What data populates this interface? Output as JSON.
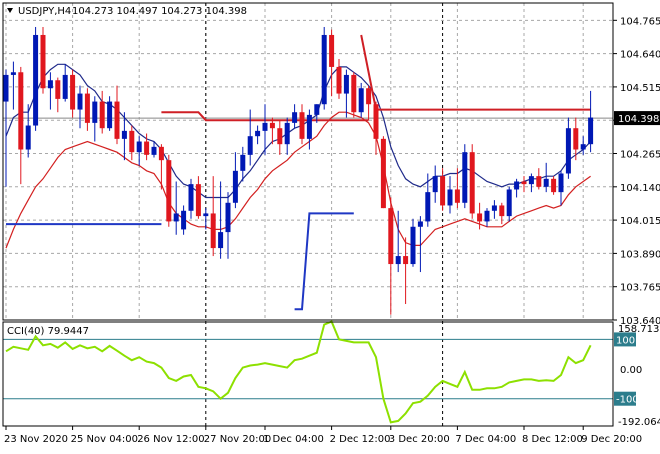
{
  "header": {
    "symbol_timeframe": "USDJPY,H4",
    "ohlc": "104.273 104.497 104.273 104.398"
  },
  "colors": {
    "bull_candle": "#0018b4",
    "bear_candle": "#e0171e",
    "upper_band": "#1f2a8a",
    "lower_band": "#d32020",
    "resistance_line": "#cf1f25",
    "support_line": "#1f37c4",
    "cci_line": "#8de000",
    "cci_level_line": "#2c7d8c",
    "price_marker_bg": "#000000",
    "price_marker_text": "#ffffff"
  },
  "chart_data": [
    {
      "type": "candlestick",
      "symbol": "USDJPY",
      "timeframe": "H4",
      "current_price": "104.398",
      "ylim": [
        103.64,
        104.83
      ],
      "y_ticks": [
        "104.765",
        "104.640",
        "104.515",
        "104.390",
        "104.265",
        "104.140",
        "104.015",
        "103.890",
        "103.765",
        "103.640"
      ],
      "x_ticks": [
        "23 Nov 2020",
        "25 Nov 04:00",
        "26 Nov 12:00",
        "27 Nov 20:00",
        "1 Dec 04:00",
        "2 Dec 12:00",
        "3 Dec 20:00",
        "7 Dec 04:00",
        "8 Dec 12:00",
        "9 Dec 20:00"
      ],
      "candles": [
        {
          "o": 104.46,
          "h": 104.58,
          "l": 104.14,
          "c": 104.56
        },
        {
          "o": 104.56,
          "h": 104.61,
          "l": 104.43,
          "c": 104.57
        },
        {
          "o": 104.57,
          "h": 104.59,
          "l": 104.15,
          "c": 104.28
        },
        {
          "o": 104.28,
          "h": 104.45,
          "l": 104.25,
          "c": 104.37
        },
        {
          "o": 104.37,
          "h": 104.74,
          "l": 104.35,
          "c": 104.71
        },
        {
          "o": 104.71,
          "h": 104.74,
          "l": 104.49,
          "c": 104.51
        },
        {
          "o": 104.51,
          "h": 104.57,
          "l": 104.43,
          "c": 104.54
        },
        {
          "o": 104.54,
          "h": 104.55,
          "l": 104.42,
          "c": 104.47
        },
        {
          "o": 104.47,
          "h": 104.6,
          "l": 104.46,
          "c": 104.56
        },
        {
          "o": 104.56,
          "h": 104.58,
          "l": 104.4,
          "c": 104.43
        },
        {
          "o": 104.43,
          "h": 104.52,
          "l": 104.36,
          "c": 104.49
        },
        {
          "o": 104.49,
          "h": 104.51,
          "l": 104.35,
          "c": 104.38
        },
        {
          "o": 104.38,
          "h": 104.48,
          "l": 104.31,
          "c": 104.46
        },
        {
          "o": 104.46,
          "h": 104.5,
          "l": 104.34,
          "c": 104.36
        },
        {
          "o": 104.36,
          "h": 104.48,
          "l": 104.35,
          "c": 104.46
        },
        {
          "o": 104.46,
          "h": 104.52,
          "l": 104.3,
          "c": 104.32
        },
        {
          "o": 104.32,
          "h": 104.42,
          "l": 104.24,
          "c": 104.35
        },
        {
          "o": 104.35,
          "h": 104.37,
          "l": 104.24,
          "c": 104.27
        },
        {
          "o": 104.27,
          "h": 104.33,
          "l": 104.22,
          "c": 104.31
        },
        {
          "o": 104.31,
          "h": 104.34,
          "l": 104.24,
          "c": 104.26
        },
        {
          "o": 104.26,
          "h": 104.31,
          "l": 104.25,
          "c": 104.29
        },
        {
          "o": 104.29,
          "h": 104.3,
          "l": 104.13,
          "c": 104.24
        },
        {
          "o": 104.24,
          "h": 104.26,
          "l": 103.99,
          "c": 104.01
        },
        {
          "o": 104.01,
          "h": 104.16,
          "l": 103.96,
          "c": 104.04
        },
        {
          "o": 103.98,
          "h": 104.07,
          "l": 103.96,
          "c": 104.05
        },
        {
          "o": 104.05,
          "h": 104.17,
          "l": 104.02,
          "c": 104.15
        },
        {
          "o": 104.15,
          "h": 104.18,
          "l": 104.02,
          "c": 104.03
        },
        {
          "o": 104.03,
          "h": 104.06,
          "l": 103.98,
          "c": 104.04
        },
        {
          "o": 104.04,
          "h": 104.18,
          "l": 103.88,
          "c": 103.91
        },
        {
          "o": 103.91,
          "h": 104.16,
          "l": 103.87,
          "c": 103.97
        },
        {
          "o": 103.97,
          "h": 104.12,
          "l": 103.87,
          "c": 104.08
        },
        {
          "o": 104.08,
          "h": 104.27,
          "l": 104.06,
          "c": 104.2
        },
        {
          "o": 104.2,
          "h": 104.29,
          "l": 104.16,
          "c": 104.26
        },
        {
          "o": 104.26,
          "h": 104.43,
          "l": 104.22,
          "c": 104.33
        },
        {
          "o": 104.33,
          "h": 104.37,
          "l": 104.3,
          "c": 104.35
        },
        {
          "o": 104.35,
          "h": 104.45,
          "l": 104.26,
          "c": 104.38
        },
        {
          "o": 104.38,
          "h": 104.4,
          "l": 104.3,
          "c": 104.36
        },
        {
          "o": 104.36,
          "h": 104.39,
          "l": 104.26,
          "c": 104.3
        },
        {
          "o": 104.3,
          "h": 104.4,
          "l": 104.26,
          "c": 104.38
        },
        {
          "o": 104.38,
          "h": 104.45,
          "l": 104.36,
          "c": 104.42
        },
        {
          "o": 104.42,
          "h": 104.45,
          "l": 104.3,
          "c": 104.32
        },
        {
          "o": 104.32,
          "h": 104.43,
          "l": 104.28,
          "c": 104.41
        },
        {
          "o": 104.41,
          "h": 104.45,
          "l": 104.38,
          "c": 104.45
        },
        {
          "o": 104.45,
          "h": 104.74,
          "l": 104.43,
          "c": 104.71
        },
        {
          "o": 104.71,
          "h": 104.73,
          "l": 104.48,
          "c": 104.59
        },
        {
          "o": 104.59,
          "h": 104.62,
          "l": 104.47,
          "c": 104.49
        },
        {
          "o": 104.49,
          "h": 104.58,
          "l": 104.4,
          "c": 104.56
        },
        {
          "o": 104.56,
          "h": 104.57,
          "l": 104.4,
          "c": 104.42
        },
        {
          "o": 104.42,
          "h": 104.53,
          "l": 104.4,
          "c": 104.51
        },
        {
          "o": 104.51,
          "h": 104.52,
          "l": 104.39,
          "c": 104.45
        },
        {
          "o": 104.45,
          "h": 104.46,
          "l": 104.26,
          "c": 104.32
        },
        {
          "o": 104.32,
          "h": 104.33,
          "l": 104.06,
          "c": 104.06
        },
        {
          "o": 104.06,
          "h": 104.1,
          "l": 103.66,
          "c": 103.85
        },
        {
          "o": 103.85,
          "h": 104.05,
          "l": 103.82,
          "c": 103.88
        },
        {
          "o": 103.88,
          "h": 103.95,
          "l": 103.7,
          "c": 103.85
        },
        {
          "o": 103.85,
          "h": 104.02,
          "l": 103.84,
          "c": 103.99
        },
        {
          "o": 103.99,
          "h": 104.03,
          "l": 103.82,
          "c": 104.01
        },
        {
          "o": 104.01,
          "h": 104.19,
          "l": 103.99,
          "c": 104.12
        },
        {
          "o": 104.12,
          "h": 104.22,
          "l": 104.08,
          "c": 104.18
        },
        {
          "o": 104.18,
          "h": 104.21,
          "l": 104.05,
          "c": 104.07
        },
        {
          "o": 104.07,
          "h": 104.18,
          "l": 104.04,
          "c": 104.13
        },
        {
          "o": 104.13,
          "h": 104.21,
          "l": 104.06,
          "c": 104.08
        },
        {
          "o": 104.08,
          "h": 104.3,
          "l": 104.06,
          "c": 104.27
        },
        {
          "o": 104.27,
          "h": 104.3,
          "l": 104.02,
          "c": 104.04
        },
        {
          "o": 104.04,
          "h": 104.08,
          "l": 103.98,
          "c": 104.01
        },
        {
          "o": 104.01,
          "h": 104.06,
          "l": 103.99,
          "c": 104.05
        },
        {
          "o": 104.05,
          "h": 104.09,
          "l": 104.02,
          "c": 104.07
        },
        {
          "o": 104.07,
          "h": 104.08,
          "l": 104.0,
          "c": 104.03
        },
        {
          "o": 104.03,
          "h": 104.14,
          "l": 104.01,
          "c": 104.13
        },
        {
          "o": 104.13,
          "h": 104.17,
          "l": 104.1,
          "c": 104.16
        },
        {
          "o": 104.16,
          "h": 104.18,
          "l": 104.12,
          "c": 104.15
        },
        {
          "o": 104.15,
          "h": 104.19,
          "l": 104.12,
          "c": 104.18
        },
        {
          "o": 104.18,
          "h": 104.21,
          "l": 104.13,
          "c": 104.14
        },
        {
          "o": 104.14,
          "h": 104.23,
          "l": 104.12,
          "c": 104.17
        },
        {
          "o": 104.17,
          "h": 104.18,
          "l": 104.11,
          "c": 104.12
        },
        {
          "o": 104.12,
          "h": 104.2,
          "l": 104.07,
          "c": 104.19
        },
        {
          "o": 104.19,
          "h": 104.4,
          "l": 104.17,
          "c": 104.36
        },
        {
          "o": 104.36,
          "h": 104.4,
          "l": 104.24,
          "c": 104.28
        },
        {
          "o": 104.28,
          "h": 104.33,
          "l": 104.26,
          "c": 104.3
        },
        {
          "o": 104.3,
          "h": 104.5,
          "l": 104.27,
          "c": 104.4
        }
      ],
      "overlay_lines": [
        {
          "role": "upper_band",
          "values": [
            104.33,
            104.4,
            104.42,
            104.42,
            104.49,
            104.55,
            104.58,
            104.6,
            104.6,
            104.58,
            104.56,
            104.52,
            104.5,
            104.46,
            104.45,
            104.43,
            104.4,
            104.37,
            104.34,
            104.32,
            104.31,
            104.28,
            104.23,
            104.18,
            104.15,
            104.14,
            104.12,
            104.1,
            104.1,
            104.1,
            104.1,
            104.13,
            104.17,
            104.2,
            104.24,
            104.28,
            104.31,
            104.32,
            104.34,
            104.36,
            104.37,
            104.39,
            104.41,
            104.5,
            104.56,
            104.59,
            104.59,
            104.57,
            104.55,
            104.52,
            104.48,
            104.4,
            104.29,
            104.22,
            104.17,
            104.15,
            104.14,
            104.16,
            104.18,
            104.18,
            104.19,
            104.19,
            104.21,
            104.2,
            104.18,
            104.16,
            104.15,
            104.14,
            104.15,
            104.15,
            104.16,
            104.17,
            104.17,
            104.18,
            104.18,
            104.2,
            104.24,
            104.26,
            104.28,
            104.31
          ]
        },
        {
          "role": "lower_band",
          "values": [
            103.91,
            103.98,
            104.04,
            104.09,
            104.14,
            104.17,
            104.21,
            104.25,
            104.28,
            104.29,
            104.3,
            104.31,
            104.3,
            104.29,
            104.28,
            104.27,
            104.25,
            104.23,
            104.22,
            104.2,
            104.19,
            104.15,
            104.08,
            104.04,
            104.02,
            104.0,
            103.99,
            103.99,
            103.98,
            103.98,
            103.99,
            104.02,
            104.06,
            104.1,
            104.13,
            104.17,
            104.2,
            104.22,
            104.24,
            104.27,
            104.29,
            104.31,
            104.33,
            104.37,
            104.4,
            104.42,
            104.42,
            104.41,
            104.4,
            104.38,
            104.33,
            104.22,
            104.08,
            103.98,
            103.93,
            103.92,
            103.92,
            103.95,
            103.98,
            103.99,
            104.0,
            104.01,
            104.02,
            104.01,
            104.0,
            103.99,
            103.99,
            103.99,
            104.01,
            104.03,
            104.04,
            104.05,
            104.06,
            104.07,
            104.06,
            104.07,
            104.11,
            104.14,
            104.16,
            104.18
          ]
        },
        {
          "role": "resistance_line",
          "segments": [
            [
              [
                21,
                104.42
              ],
              [
                26,
                104.42
              ],
              [
                27,
                104.39
              ],
              [
                49,
                104.39
              ]
            ],
            [
              [
                48,
                104.71
              ],
              [
                50,
                104.43
              ],
              [
                51,
                104.43
              ],
              [
                79,
                104.43
              ]
            ]
          ]
        },
        {
          "role": "support_line",
          "segments": [
            [
              [
                0,
                104.0
              ],
              [
                21,
                104.0
              ]
            ],
            [
              [
                39,
                103.68
              ],
              [
                40,
                103.68
              ],
              [
                41,
                104.04
              ],
              [
                42,
                104.04
              ],
              [
                47,
                104.04
              ]
            ]
          ]
        }
      ]
    },
    {
      "type": "line",
      "title": "CCI(40) 79.9447",
      "series": [
        {
          "name": "CCI(40)",
          "values": [
            60,
            75,
            70,
            65,
            110,
            80,
            85,
            72,
            90,
            68,
            80,
            70,
            75,
            60,
            78,
            62,
            45,
            30,
            40,
            25,
            20,
            5,
            -30,
            -40,
            -25,
            -20,
            -60,
            -65,
            -75,
            -100,
            -80,
            -30,
            5,
            12,
            15,
            20,
            15,
            10,
            5,
            30,
            35,
            45,
            55,
            150,
            160,
            100,
            95,
            90,
            90,
            90,
            40,
            -100,
            -180,
            -175,
            -150,
            -115,
            -110,
            -90,
            -60,
            -40,
            -50,
            -60,
            -10,
            -70,
            -70,
            -65,
            -65,
            -60,
            -45,
            -40,
            -35,
            -35,
            -40,
            -38,
            -40,
            -20,
            40,
            20,
            30,
            80
          ]
        }
      ],
      "ylim": [
        -192.0645,
        158.7135
      ],
      "axis_labels": {
        "max": "158.7135",
        "min": "-192.0645",
        "zero": "0.00"
      },
      "levels": [
        {
          "value": 100,
          "label": "100"
        },
        {
          "value": -100,
          "label": "-100"
        }
      ]
    }
  ]
}
